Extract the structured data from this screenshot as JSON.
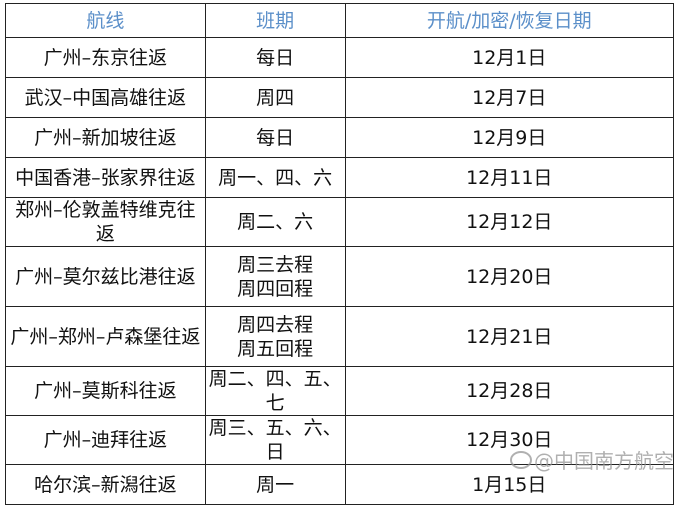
{
  "table": {
    "headers": [
      "航线",
      "班期",
      "开航/加密/恢复日期"
    ],
    "rows": [
      {
        "route": "广州–东京往返",
        "schedule": [
          "每日"
        ],
        "date": "12月1日"
      },
      {
        "route": "武汉–中国高雄往返",
        "schedule": [
          "周四"
        ],
        "date": "12月7日"
      },
      {
        "route": "广州–新加坡往返",
        "schedule": [
          "每日"
        ],
        "date": "12月9日"
      },
      {
        "route": "中国香港–张家界往返",
        "schedule": [
          "周一、四、六"
        ],
        "date": "12月11日"
      },
      {
        "route": "郑州–伦敦盖特维克往返",
        "schedule": [
          "周二、六"
        ],
        "date": "12月12日"
      },
      {
        "route": "广州–莫尔兹比港往返",
        "schedule": [
          "周三去程",
          "周四回程"
        ],
        "date": "12月20日"
      },
      {
        "route": "广州–郑州–卢森堡往返",
        "schedule": [
          "周四去程",
          "周五回程"
        ],
        "date": "12月21日"
      },
      {
        "route": "广州–莫斯科往返",
        "schedule": [
          "周二、四、五、七"
        ],
        "date": "12月28日"
      },
      {
        "route": "广州–迪拜往返",
        "schedule": [
          "周三、五、六、日"
        ],
        "date": "12月30日"
      },
      {
        "route": "哈尔滨–新潟往返",
        "schedule": [
          "周一"
        ],
        "date": "1月15日"
      }
    ]
  },
  "watermark": {
    "text": "@中国南方航空",
    "icon": "weibo-icon"
  },
  "colors": {
    "header_text": "#5b8fc9"
  }
}
